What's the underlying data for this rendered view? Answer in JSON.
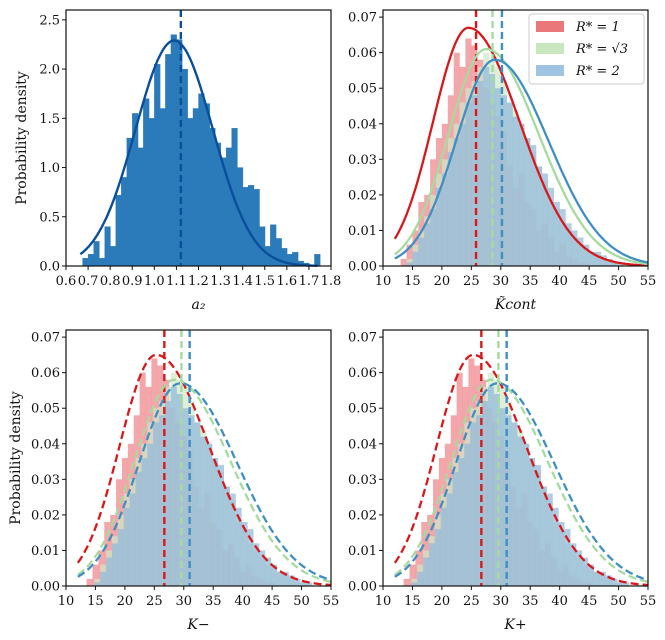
{
  "figure": {
    "ylabel": "Probability density"
  },
  "colors": {
    "blue": "#2b7bba",
    "blue_dark": "#0b4f9c",
    "red": "#d7191c",
    "red_fill": "#ef8a8d",
    "green": "#a6dba0",
    "green_fill": "#cfe8c6",
    "skyblue": "#3f8fc4",
    "sky_fill": "#8fb8dc"
  },
  "legend": [
    {
      "label": "R* = 1",
      "color": "#e34a4d"
    },
    {
      "label": "R* = √3",
      "color": "#b6dfa9"
    },
    {
      "label": "R* = 2",
      "color": "#7fb0d9"
    }
  ],
  "chart_data": [
    {
      "type": "bar",
      "title": "",
      "xlabel": "a₂",
      "ylabel": "Probability density",
      "xlim": [
        0.6,
        1.8
      ],
      "ylim": [
        0,
        2.6
      ],
      "xticks": [
        0.6,
        0.7,
        0.8,
        0.9,
        1.0,
        1.1,
        1.2,
        1.3,
        1.4,
        1.5,
        1.6,
        1.7,
        1.8
      ],
      "yticks": [
        0.0,
        0.5,
        1.0,
        1.5,
        2.0,
        2.5
      ],
      "bin_width": 0.025,
      "bins_start": [
        0.675,
        0.7,
        0.725,
        0.75,
        0.775,
        0.8,
        0.825,
        0.85,
        0.875,
        0.9,
        0.925,
        0.95,
        0.975,
        1.0,
        1.025,
        1.05,
        1.075,
        1.1,
        1.125,
        1.15,
        1.175,
        1.2,
        1.225,
        1.25,
        1.275,
        1.3,
        1.325,
        1.35,
        1.375,
        1.4,
        1.425,
        1.45,
        1.475,
        1.5,
        1.525,
        1.55,
        1.575,
        1.6,
        1.625,
        1.65,
        1.675,
        1.7,
        1.725
      ],
      "values": [
        0.08,
        0.12,
        0.25,
        0.08,
        0.4,
        0.2,
        0.72,
        0.9,
        1.3,
        1.55,
        1.2,
        1.7,
        1.5,
        2.05,
        1.6,
        2.15,
        2.35,
        2.3,
        2.0,
        1.5,
        1.6,
        1.75,
        1.65,
        1.4,
        1.25,
        1.1,
        1.2,
        1.4,
        1.0,
        0.8,
        0.82,
        0.78,
        0.4,
        0.2,
        0.42,
        0.28,
        0.18,
        0.12,
        0.14,
        0.05,
        0.03,
        0.0,
        0.12
      ],
      "fit_curve": {
        "mean": 1.09,
        "sd": 0.175,
        "color": "#0b4f9c"
      },
      "vline": 1.12
    },
    {
      "type": "bar",
      "title": "",
      "xlabel": "K̃cont",
      "ylabel": "",
      "xlim": [
        10,
        55
      ],
      "ylim": [
        0,
        0.072
      ],
      "xticks": [
        10,
        15,
        20,
        25,
        30,
        35,
        40,
        45,
        50,
        55
      ],
      "yticks": [
        0.0,
        0.01,
        0.02,
        0.03,
        0.04,
        0.05,
        0.06,
        0.07
      ],
      "series": [
        {
          "name": "R* = 1",
          "fit": {
            "mean": 24.5,
            "sd": 6.0,
            "skew_right": 1.45,
            "peak": 0.067
          },
          "vline": 25.8,
          "line_style": "solid"
        },
        {
          "name": "R* = √3",
          "fit": {
            "mean": 27.5,
            "sd": 6.4,
            "skew_right": 1.4,
            "peak": 0.061
          },
          "vline": 28.6,
          "line_style": "solid"
        },
        {
          "name": "R* = 2",
          "fit": {
            "mean": 29.0,
            "sd": 6.6,
            "skew_right": 1.38,
            "peak": 0.058
          },
          "vline": 30.2,
          "line_style": "solid"
        }
      ]
    },
    {
      "type": "bar",
      "title": "",
      "xlabel": "K−",
      "ylabel": "Probability density",
      "xlim": [
        10,
        55
      ],
      "ylim": [
        0,
        0.072
      ],
      "xticks": [
        10,
        15,
        20,
        25,
        30,
        35,
        40,
        45,
        50,
        55
      ],
      "yticks": [
        0.0,
        0.01,
        0.02,
        0.03,
        0.04,
        0.05,
        0.06,
        0.07
      ],
      "series": [
        {
          "name": "R* = 1",
          "fit": {
            "mean": 25.3,
            "sd": 6.2,
            "skew_right": 1.45,
            "peak": 0.065
          },
          "vline": 26.7,
          "line_style": "dashed"
        },
        {
          "name": "R* = √3",
          "fit": {
            "mean": 28.4,
            "sd": 6.8,
            "skew_right": 1.4,
            "peak": 0.058
          },
          "vline": 29.6,
          "line_style": "dashed"
        },
        {
          "name": "R* = 2",
          "fit": {
            "mean": 29.4,
            "sd": 7.0,
            "skew_right": 1.38,
            "peak": 0.057
          },
          "vline": 31.0,
          "line_style": "dashed"
        }
      ]
    },
    {
      "type": "bar",
      "title": "",
      "xlabel": "K+",
      "ylabel": "",
      "xlim": [
        10,
        55
      ],
      "ylim": [
        0,
        0.072
      ],
      "xticks": [
        10,
        15,
        20,
        25,
        30,
        35,
        40,
        45,
        50,
        55
      ],
      "yticks": [
        0.0,
        0.01,
        0.02,
        0.03,
        0.04,
        0.05,
        0.06,
        0.07
      ],
      "series": [
        {
          "name": "R* = 1",
          "fit": {
            "mean": 25.3,
            "sd": 6.2,
            "skew_right": 1.45,
            "peak": 0.065
          },
          "vline": 26.7,
          "line_style": "dashed"
        },
        {
          "name": "R* = √3",
          "fit": {
            "mean": 28.4,
            "sd": 6.8,
            "skew_right": 1.4,
            "peak": 0.058
          },
          "vline": 29.6,
          "line_style": "dashed"
        },
        {
          "name": "R* = 2",
          "fit": {
            "mean": 29.4,
            "sd": 7.0,
            "skew_right": 1.38,
            "peak": 0.057
          },
          "vline": 31.0,
          "line_style": "dashed"
        }
      ]
    }
  ],
  "hist_profiles": {
    "bins_start": [
      12,
      13,
      14,
      15,
      16,
      17,
      18,
      19,
      20,
      21,
      22,
      23,
      24,
      25,
      26,
      27,
      28,
      29,
      30,
      31,
      32,
      33,
      34,
      35,
      36,
      37,
      38,
      39,
      40,
      41,
      42,
      43,
      44,
      45,
      46,
      47,
      48,
      49,
      50,
      51,
      52,
      53
    ],
    "r1": [
      0.0,
      0.002,
      0.006,
      0.01,
      0.018,
      0.02,
      0.03,
      0.036,
      0.04,
      0.048,
      0.06,
      0.056,
      0.064,
      0.062,
      0.058,
      0.05,
      0.046,
      0.042,
      0.038,
      0.028,
      0.022,
      0.026,
      0.018,
      0.016,
      0.01,
      0.012,
      0.008,
      0.004,
      0.006,
      0.003,
      0.002,
      0.001,
      0.001,
      0.0,
      0.0,
      0.0,
      0.0,
      0.0,
      0.0,
      0.0,
      0.0,
      0.0
    ],
    "rs3": [
      0.0,
      0.0,
      0.002,
      0.006,
      0.01,
      0.014,
      0.02,
      0.026,
      0.03,
      0.036,
      0.04,
      0.046,
      0.05,
      0.052,
      0.056,
      0.06,
      0.058,
      0.056,
      0.052,
      0.046,
      0.044,
      0.04,
      0.036,
      0.032,
      0.028,
      0.024,
      0.018,
      0.016,
      0.012,
      0.01,
      0.008,
      0.006,
      0.005,
      0.004,
      0.003,
      0.002,
      0.001,
      0.001,
      0.0,
      0.0,
      0.0,
      0.0
    ],
    "r2": [
      0.0,
      0.0,
      0.001,
      0.004,
      0.008,
      0.012,
      0.016,
      0.022,
      0.026,
      0.032,
      0.036,
      0.04,
      0.046,
      0.048,
      0.052,
      0.056,
      0.054,
      0.05,
      0.048,
      0.046,
      0.042,
      0.04,
      0.036,
      0.034,
      0.028,
      0.026,
      0.022,
      0.018,
      0.016,
      0.012,
      0.01,
      0.008,
      0.006,
      0.004,
      0.004,
      0.003,
      0.002,
      0.001,
      0.001,
      0.0,
      0.0,
      0.0
    ]
  }
}
